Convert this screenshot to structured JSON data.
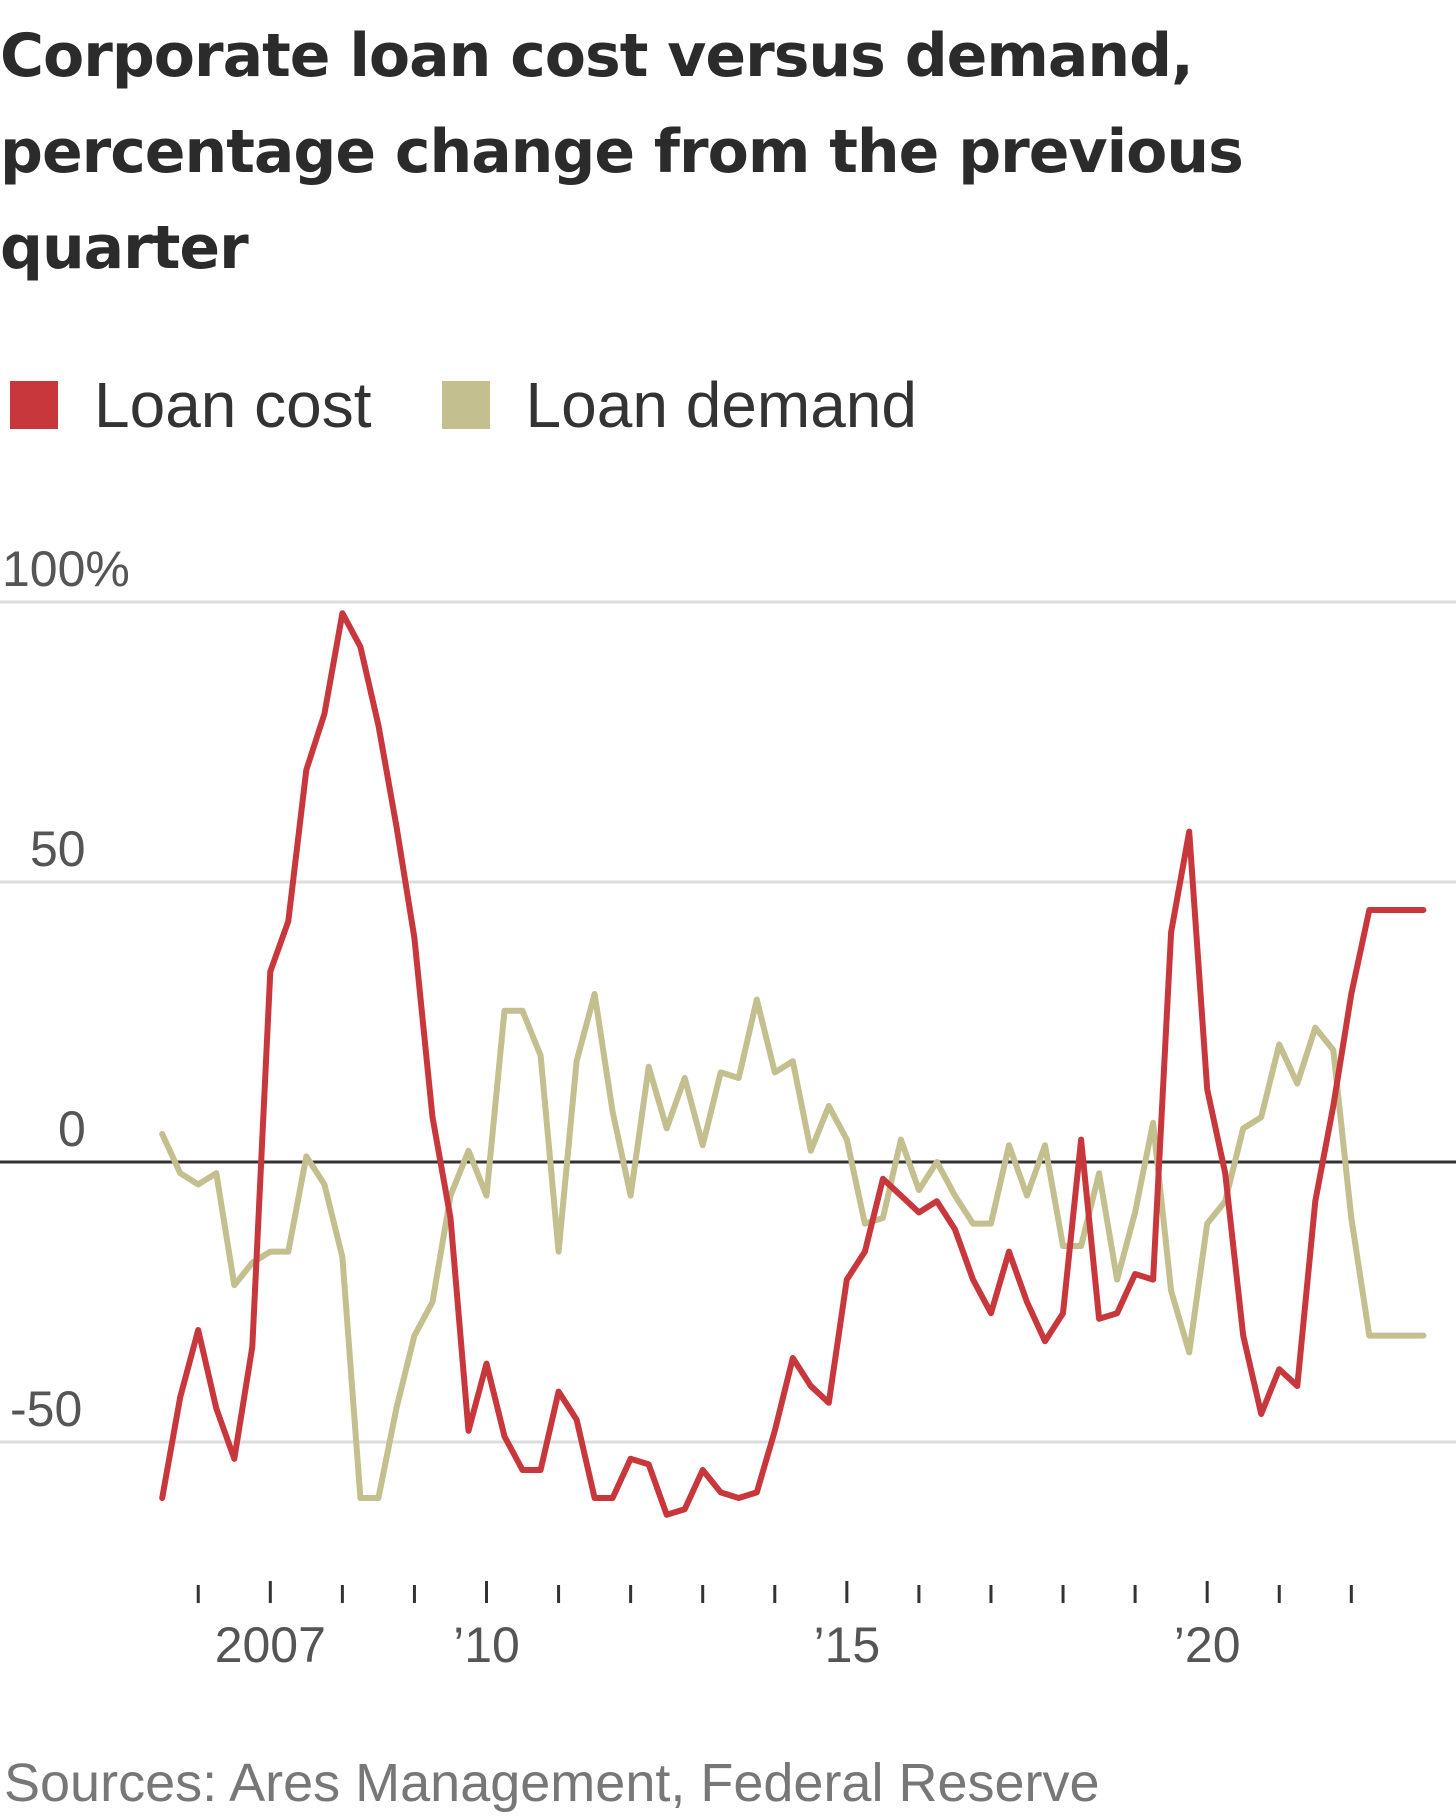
{
  "title": "Corporate loan cost versus demand, percentage change from the previous quarter",
  "legend": [
    {
      "label": "Loan cost",
      "color": "#c8373c"
    },
    {
      "label": "Loan demand",
      "color": "#c4bf8e"
    }
  ],
  "source": "Sources: Ares Management, Federal Reserve",
  "chart_data": {
    "type": "line",
    "title": "Corporate loan cost versus demand, percentage change from the previous quarter",
    "xlabel": "",
    "ylabel": "",
    "ylim": [
      -72,
      105
    ],
    "xlim": [
      2005.4,
      2023.3
    ],
    "yticks": [
      {
        "value": 100,
        "label": "100%"
      },
      {
        "value": 50,
        "label": "50"
      },
      {
        "value": 0,
        "label": "0"
      },
      {
        "value": -50,
        "label": "-50"
      }
    ],
    "xtick_labels": [
      {
        "value": 2007,
        "label": "2007"
      },
      {
        "value": 2010,
        "label": "’10"
      },
      {
        "value": 2015,
        "label": "’15"
      },
      {
        "value": 2020,
        "label": "’20"
      }
    ],
    "minor_ticks": [
      2006,
      2007,
      2008,
      2009,
      2010,
      2011,
      2012,
      2013,
      2014,
      2015,
      2016,
      2017,
      2018,
      2019,
      2020,
      2021,
      2022
    ],
    "series": [
      {
        "name": "Loan cost",
        "color": "#c8373c",
        "x": [
          2005.5,
          2005.75,
          2006.0,
          2006.25,
          2006.5,
          2006.75,
          2007.0,
          2007.25,
          2007.5,
          2007.75,
          2008.0,
          2008.25,
          2008.5,
          2008.75,
          2009.0,
          2009.25,
          2009.5,
          2009.75,
          2010.0,
          2010.25,
          2010.5,
          2010.75,
          2011.0,
          2011.25,
          2011.5,
          2011.75,
          2012.0,
          2012.25,
          2012.5,
          2012.75,
          2013.0,
          2013.25,
          2013.5,
          2013.75,
          2014.0,
          2014.25,
          2014.5,
          2014.75,
          2015.0,
          2015.25,
          2015.5,
          2015.75,
          2016.0,
          2016.25,
          2016.5,
          2016.75,
          2017.0,
          2017.25,
          2017.5,
          2017.75,
          2018.0,
          2018.25,
          2018.5,
          2018.75,
          2019.0,
          2019.25,
          2019.5,
          2019.75,
          2020.0,
          2020.25,
          2020.5,
          2020.75,
          2021.0,
          2021.25,
          2021.5,
          2021.75,
          2022.0,
          2022.25,
          2022.5,
          2022.75,
          2023.0
        ],
        "values": [
          -60,
          -42,
          -30,
          -44,
          -53,
          -33,
          34,
          43,
          70,
          80,
          98,
          92,
          78,
          60,
          40,
          8,
          -10,
          -48,
          -36,
          -49,
          -55,
          -55,
          -41,
          -46,
          -60,
          -60,
          -53,
          -54,
          -63,
          -62,
          -55,
          -59,
          -60,
          -59,
          -48,
          -35,
          -40,
          -43,
          -21,
          -16,
          -3,
          -6,
          -9,
          -7,
          -12,
          -21,
          -27,
          -16,
          -25,
          -32,
          -27,
          4,
          -28,
          -27,
          -20,
          -21,
          41,
          59,
          13,
          -2,
          -31,
          -45,
          -37,
          -40,
          -7,
          10,
          30,
          45,
          45,
          45,
          45
        ]
      },
      {
        "name": "Loan demand",
        "color": "#c4bf8e",
        "x": [
          2005.5,
          2005.75,
          2006.0,
          2006.25,
          2006.5,
          2006.75,
          2007.0,
          2007.25,
          2007.5,
          2007.75,
          2008.0,
          2008.25,
          2008.5,
          2008.75,
          2009.0,
          2009.25,
          2009.5,
          2009.75,
          2010.0,
          2010.25,
          2010.5,
          2010.75,
          2011.0,
          2011.25,
          2011.5,
          2011.75,
          2012.0,
          2012.25,
          2012.5,
          2012.75,
          2013.0,
          2013.25,
          2013.5,
          2013.75,
          2014.0,
          2014.25,
          2014.5,
          2014.75,
          2015.0,
          2015.25,
          2015.5,
          2015.75,
          2016.0,
          2016.25,
          2016.5,
          2016.75,
          2017.0,
          2017.25,
          2017.5,
          2017.75,
          2018.0,
          2018.25,
          2018.5,
          2018.75,
          2019.0,
          2019.25,
          2019.5,
          2019.75,
          2020.0,
          2020.25,
          2020.5,
          2020.75,
          2021.0,
          2021.25,
          2021.5,
          2021.75,
          2022.0,
          2022.25,
          2022.5,
          2022.75,
          2023.0
        ],
        "values": [
          5,
          -2,
          -4,
          -2,
          -22,
          -18,
          -16,
          -16,
          1,
          -4,
          -17,
          -60,
          -60,
          -44,
          -31,
          -25,
          -6,
          2,
          -6,
          27,
          27,
          19,
          -16,
          18,
          30,
          9,
          -6,
          17,
          6,
          15,
          3,
          16,
          15,
          29,
          16,
          18,
          2,
          10,
          4,
          -11,
          -10,
          4,
          -5,
          0,
          -6,
          -11,
          -11,
          3,
          -6,
          3,
          -15,
          -15,
          -2,
          -21,
          -9,
          7,
          -23,
          -34,
          -11,
          -7,
          6,
          8,
          21,
          14,
          24,
          20,
          -10,
          -31,
          -31,
          -31,
          -31
        ]
      }
    ]
  }
}
